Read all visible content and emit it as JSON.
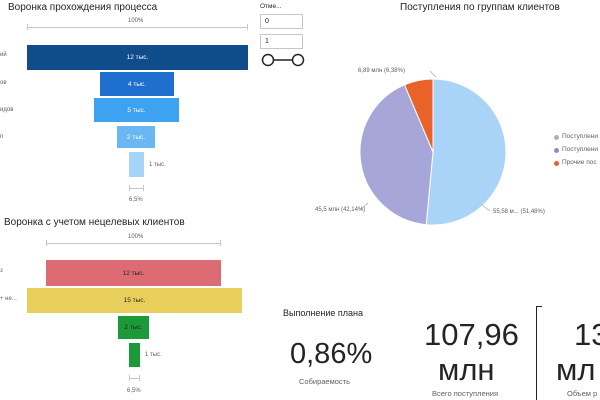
{
  "funnel1": {
    "title": "Воронка прохождения процесса",
    "top_pct": "100%",
    "bottom_pct": "6,5%",
    "cut_labels": [
      "ий",
      "ов",
      "идов",
      "п"
    ],
    "bars": [
      {
        "label": "12 тыс.",
        "color": "#0f4c8a",
        "value_pct": 100
      },
      {
        "label": "4 тыс.",
        "color": "#1f6fce",
        "value_pct": 33
      },
      {
        "label": "5 тыс.",
        "color": "#3da2ef",
        "value_pct": 38
      },
      {
        "label": "2 тыс.",
        "color": "#69b8f2",
        "value_pct": 17
      },
      {
        "label": "1 тыс.",
        "color": "#a6d4f8",
        "value_pct": 6.5
      }
    ]
  },
  "slicer": {
    "title": "Отме...",
    "min_value": "0",
    "max_value": "1"
  },
  "pie": {
    "title": "Поступления по группам клиентов",
    "labels": [
      "6,89 млн (6,38%)",
      "45,5 млн (42,14%)",
      "55,58 м... (51,48%)"
    ],
    "legend": [
      {
        "label": "Поступлени",
        "color": "#b3b0ad"
      },
      {
        "label": "Поступлени",
        "color": "#8e8cc2"
      },
      {
        "label": "Прочие пос",
        "color": "#e8622a"
      }
    ]
  },
  "funnel2": {
    "title": "Воронка с учетом нецелевых клиентов",
    "top_pct": "100%",
    "bottom_pct": "6,5%",
    "cut_labels": [
      "з",
      "+ не..."
    ],
    "bars": [
      {
        "label": "12 тыс.",
        "color": "#dd6b74",
        "value_pct": 80
      },
      {
        "label": "15 тыс.",
        "color": "#e8cf5c",
        "value_pct": 100
      },
      {
        "label": "2 тыс.",
        "color": "#1c9a3a",
        "value_pct": 13
      },
      {
        "label": "1 тыс.",
        "color": "#1c9a3a",
        "value_pct": 6.5
      }
    ]
  },
  "plan": {
    "title": "Выполнение плана",
    "value": "0,86%",
    "caption": "Собираемость"
  },
  "kpi1": {
    "value_line1": "107,96",
    "value_line2": "млн",
    "caption": "Всего поступления"
  },
  "kpi2": {
    "value_line1": "13",
    "value_line2": "мл",
    "caption": "Объем р"
  },
  "chart_data": [
    {
      "type": "bar",
      "title": "Воронка прохождения процесса",
      "categories": [
        "",
        "",
        "",
        "",
        ""
      ],
      "values": [
        12,
        4,
        5,
        2,
        1
      ]
    },
    {
      "type": "pie",
      "title": "Поступления по группам клиентов",
      "categories": [
        "Поступлени",
        "Поступлени",
        "Прочие пос"
      ],
      "values": [
        55.58,
        45.5,
        6.89
      ],
      "percents": [
        51.48,
        42.14,
        6.38
      ]
    },
    {
      "type": "bar",
      "title": "Воронка с учетом нецелевых клиентов",
      "categories": [
        "",
        "",
        "",
        ""
      ],
      "values": [
        12,
        15,
        2,
        1
      ]
    }
  ]
}
